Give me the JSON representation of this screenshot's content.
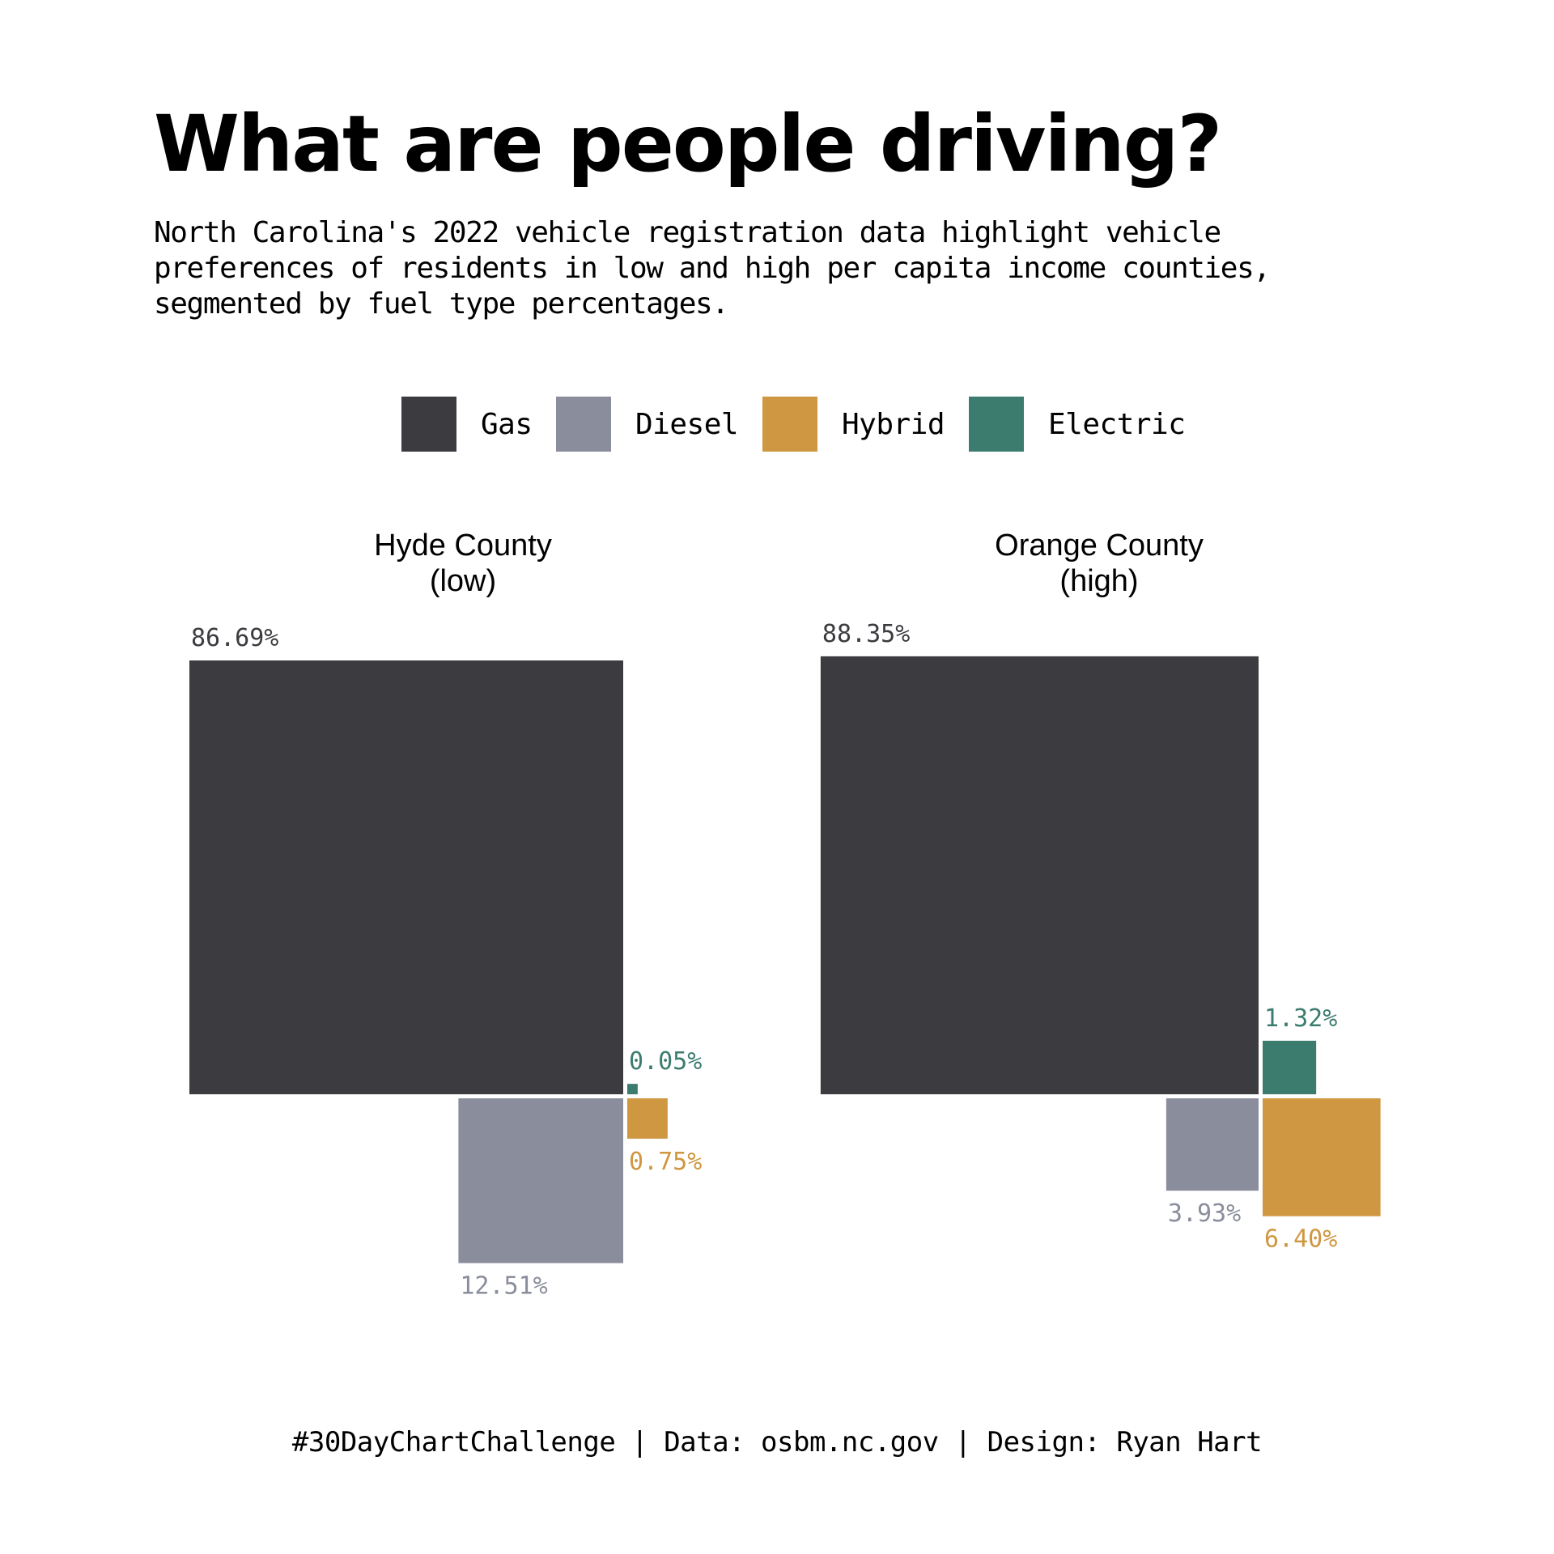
{
  "title": "What are people driving?",
  "subtitle": [
    "North Carolina's 2022 vehicle registration data highlight vehicle",
    "preferences of residents in low and high per capita income counties,",
    "segmented by fuel type percentages."
  ],
  "legend": [
    {
      "label": "Gas",
      "color": "#3b3b40"
    },
    {
      "label": "Diesel",
      "color": "#8a8e9c"
    },
    {
      "label": "Hybrid",
      "color": "#cf9741"
    },
    {
      "label": "Electric",
      "color": "#3c7c6f"
    }
  ],
  "footer": "#30DayChartChallenge | Data: osbm.nc.gov | Design: Ryan Hart",
  "chart_data": {
    "type": "area-squares",
    "unit": "%",
    "categories": [
      "Gas",
      "Diesel",
      "Hybrid",
      "Electric"
    ],
    "colors": {
      "Gas": "#3b3b40",
      "Diesel": "#8a8e9c",
      "Hybrid": "#cf9741",
      "Electric": "#3c7c6f"
    },
    "panels": [
      {
        "title_line1": "Hyde County",
        "title_line2": "(low)",
        "values": {
          "Gas": 86.69,
          "Diesel": 12.51,
          "Hybrid": 0.75,
          "Electric": 0.05
        },
        "labels": {
          "Gas": "86.69%",
          "Diesel": "12.51%",
          "Hybrid": "0.75%",
          "Electric": "0.05%"
        }
      },
      {
        "title_line1": "Orange County",
        "title_line2": "(high)",
        "values": {
          "Gas": 88.35,
          "Diesel": 3.93,
          "Hybrid": 6.4,
          "Electric": 1.32
        },
        "labels": {
          "Gas": "88.35%",
          "Diesel": "3.93%",
          "Hybrid": "6.40%",
          "Electric": "1.32%"
        }
      }
    ]
  }
}
